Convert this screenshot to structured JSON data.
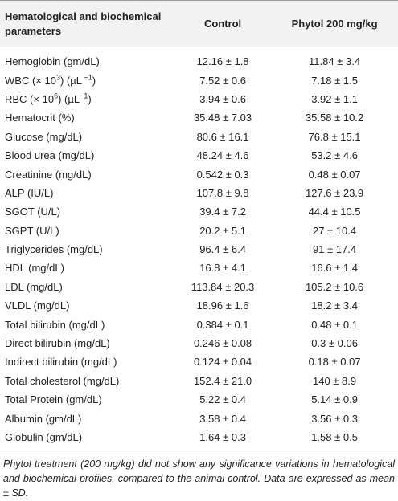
{
  "table": {
    "header": [
      "Hematological and biochemical parameters",
      "Control",
      "Phytol 200 mg/kg"
    ],
    "rows": [
      [
        "Hemoglobin (gm/dL)",
        "12.16 ± 1.8",
        "11.84 ± 3.4"
      ],
      [
        [
          "WBC (× 10",
          "3",
          ") (µL",
          " −1",
          ")"
        ],
        "7.52 ± 0.6",
        "7.18 ± 1.5"
      ],
      [
        [
          "RBC (× 10",
          "6",
          ") (µL",
          "−1",
          ")"
        ],
        "3.94 ± 0.6",
        "3.92 ± 1.1"
      ],
      [
        "Hematocrit (%)",
        "35.48 ± 7.03",
        "35.58 ± 10.2"
      ],
      [
        "Glucose (mg/dL)",
        "80.6 ± 16.1",
        "76.8 ± 15.1"
      ],
      [
        "Blood urea (mg/dL)",
        "48.24 ± 4.6",
        "53.2 ± 4.6"
      ],
      [
        "Creatinine (mg/dL)",
        "0.542 ± 0.3",
        "0.48 ± 0.07"
      ],
      [
        "ALP (IU/L)",
        "107.8 ± 9.8",
        "127.6 ± 23.9"
      ],
      [
        "SGOT (U/L)",
        "39.4 ± 7.2",
        "44.4 ± 10.5"
      ],
      [
        "SGPT (U/L)",
        "20.2 ± 5.1",
        "27 ± 10.4"
      ],
      [
        "Triglycerides (mg/dL)",
        "96.4 ± 6.4",
        "91 ± 17.4"
      ],
      [
        "HDL (mg/dL)",
        "16.8 ± 4.1",
        "16.6 ± 1.4"
      ],
      [
        "LDL (mg/dL)",
        "113.84 ± 20.3",
        "105.2 ± 10.6"
      ],
      [
        "VLDL (mg/dL)",
        "18.96 ± 1.6",
        "18.2 ± 3.4"
      ],
      [
        "Total bilirubin (mg/dL)",
        "0.384 ± 0.1",
        "0.48 ± 0.1"
      ],
      [
        "Direct bilirubin (mg/dL)",
        "0.246 ± 0.08",
        "0.3 ± 0.06"
      ],
      [
        "Indirect bilirubin (mg/dL)",
        "0.124 ± 0.04",
        "0.18 ± 0.07"
      ],
      [
        "Total cholesterol (mg/dL)",
        "152.4 ± 21.0",
        "140 ± 8.9"
      ],
      [
        "Total Protein (gm/dL)",
        "5.22 ± 0.4",
        "5.14 ± 0.9"
      ],
      [
        "Albumin (gm/dL)",
        "3.58 ± 0.4",
        "3.56 ± 0.3"
      ],
      [
        "Globulin (gm/dL)",
        "1.64 ± 0.3",
        "1.58 ± 0.5"
      ]
    ],
    "footnote": "Phytol treatment (200 mg/kg) did not show any significance variations in hematological and biochemical profiles, compared to the animal control. Data are expressed as mean ± SD."
  }
}
